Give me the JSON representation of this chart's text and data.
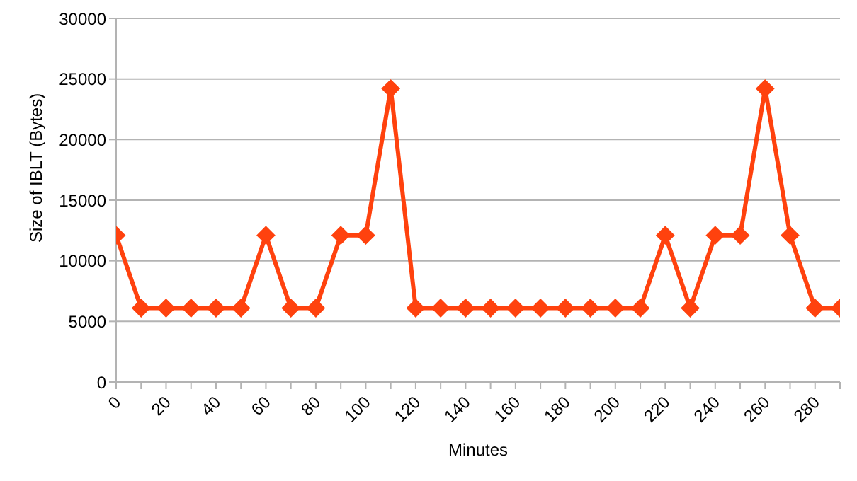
{
  "chart_data": {
    "type": "line",
    "xlabel": "Minutes",
    "ylabel": "Size of IBLT (Bytes)",
    "x": [
      0,
      10,
      20,
      30,
      40,
      50,
      60,
      70,
      80,
      90,
      100,
      110,
      120,
      130,
      140,
      150,
      160,
      170,
      180,
      190,
      200,
      210,
      220,
      230,
      240,
      250,
      260,
      270,
      280,
      290
    ],
    "series": [
      {
        "color": "#ff420e",
        "values": [
          12100,
          6100,
          6100,
          6100,
          6100,
          6100,
          12100,
          6100,
          6100,
          12100,
          12100,
          24200,
          6100,
          6100,
          6100,
          6100,
          6100,
          6100,
          6100,
          6100,
          6100,
          6100,
          12100,
          6100,
          12100,
          12100,
          24200,
          12100,
          6100,
          6100
        ]
      }
    ],
    "xlim": [
      0,
      290
    ],
    "xticks": [
      0,
      {
        "value": 10,
        "label": null
      },
      20,
      {
        "value": 30,
        "label": null
      },
      40,
      {
        "value": 50,
        "label": null
      },
      60,
      {
        "value": 70,
        "label": null
      },
      80,
      {
        "value": 90,
        "label": null
      },
      100,
      {
        "value": 110,
        "label": null
      },
      120,
      {
        "value": 130,
        "label": null
      },
      140,
      {
        "value": 150,
        "label": null
      },
      160,
      {
        "value": 170,
        "label": null
      },
      180,
      {
        "value": 190,
        "label": null
      },
      200,
      {
        "value": 210,
        "label": null
      },
      220,
      {
        "value": 230,
        "label": null
      },
      240,
      {
        "value": 250,
        "label": null
      },
      260,
      {
        "value": 270,
        "label": null
      },
      280,
      {
        "value": 290,
        "label": null
      }
    ],
    "ylim": [
      0,
      30000
    ],
    "yticks": [
      0,
      5000,
      10000,
      15000,
      20000,
      25000,
      30000
    ],
    "grid": "y",
    "legend": false,
    "marker": "diamond",
    "line_style": "solid"
  }
}
